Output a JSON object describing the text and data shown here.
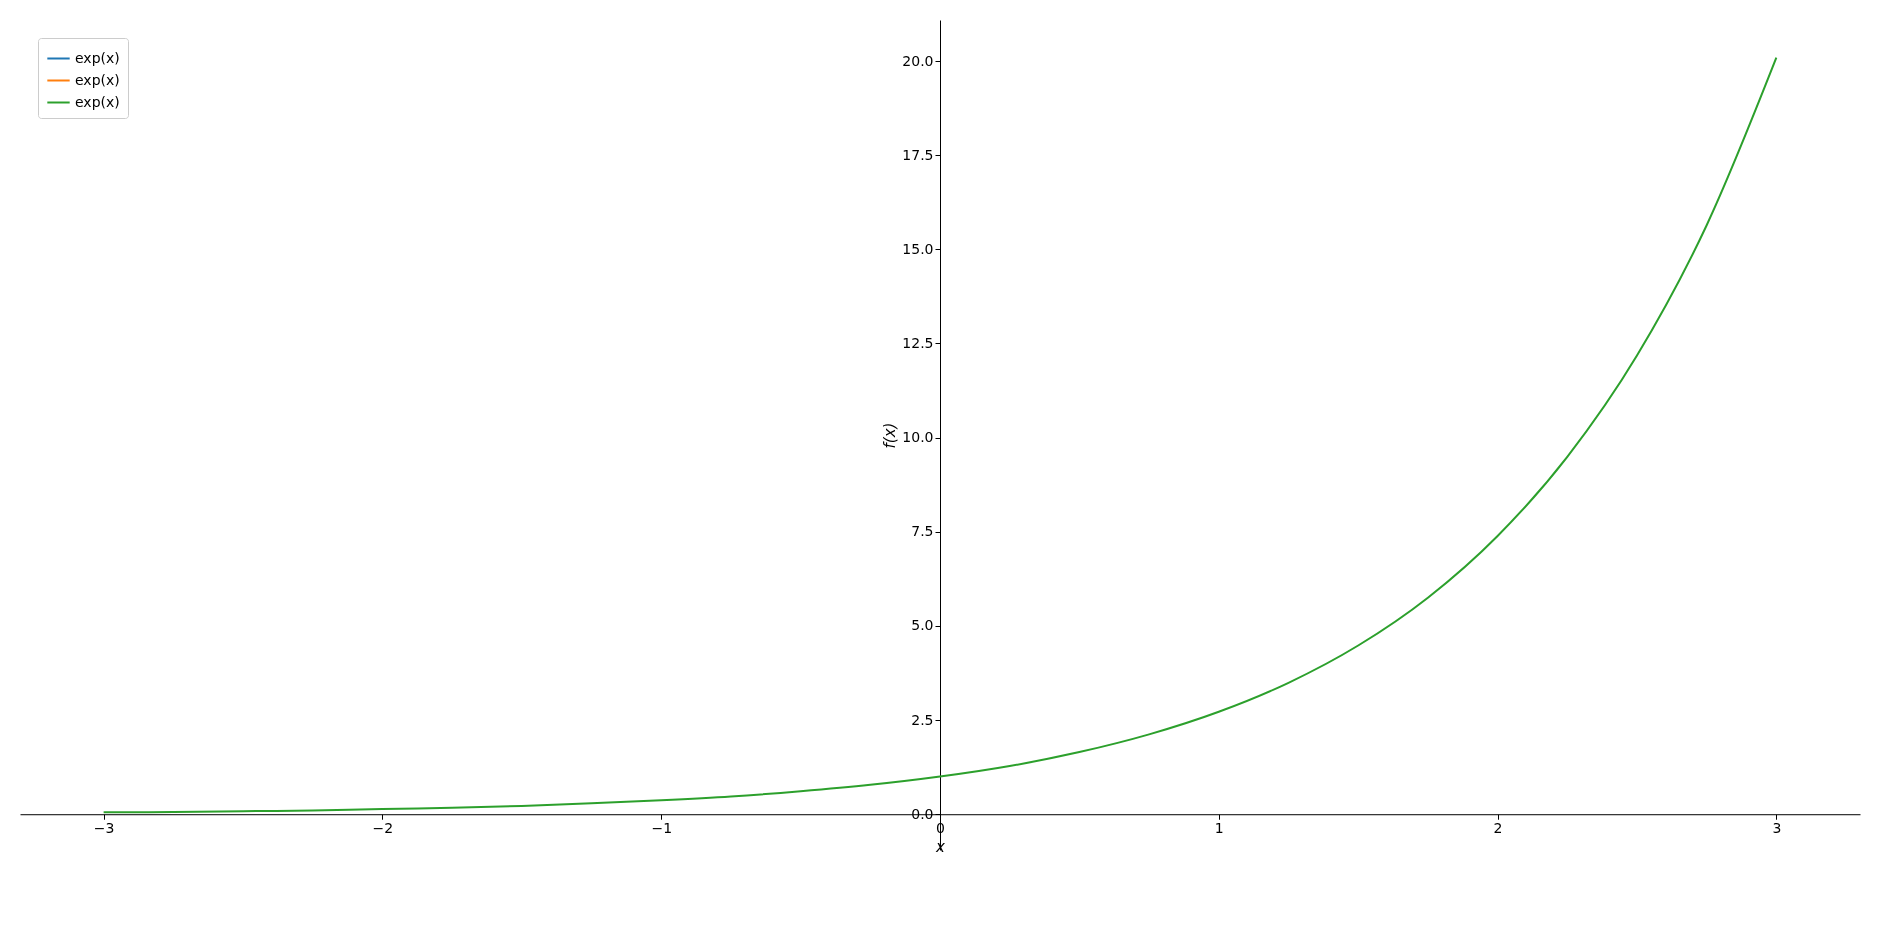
{
  "chart_data": {
    "type": "line",
    "x": [
      -3,
      -2.75,
      -2.5,
      -2.25,
      -2,
      -1.75,
      -1.5,
      -1.25,
      -1,
      -0.75,
      -0.5,
      -0.25,
      0,
      0.25,
      0.5,
      0.75,
      1,
      1.25,
      1.5,
      1.75,
      2,
      2.25,
      2.5,
      2.75,
      3
    ],
    "series": [
      {
        "name": "exp(x)",
        "color": "#1f77b4",
        "values": [
          null,
          null,
          null,
          null,
          null,
          null,
          null,
          null,
          null,
          null,
          null,
          null,
          null,
          null,
          null,
          null,
          null,
          null,
          null,
          null,
          null,
          null,
          null,
          null,
          null
        ]
      },
      {
        "name": "exp(x)",
        "color": "#ff7f0e",
        "values": [
          null,
          null,
          null,
          null,
          null,
          null,
          null,
          null,
          null,
          null,
          null,
          null,
          null,
          null,
          null,
          null,
          null,
          null,
          null,
          null,
          null,
          null,
          null,
          null,
          null
        ]
      },
      {
        "name": "exp(x)",
        "color": "#2ca02c",
        "values": [
          0.05,
          0.06,
          0.08,
          0.1,
          0.14,
          0.17,
          0.22,
          0.29,
          0.37,
          0.47,
          0.61,
          0.78,
          1.0,
          1.28,
          1.65,
          2.12,
          2.72,
          3.49,
          4.48,
          5.75,
          7.39,
          9.49,
          12.18,
          15.64,
          20.09
        ]
      }
    ],
    "xlabel": "x",
    "ylabel": "f(x)",
    "xlim": [
      -3.3,
      3.3
    ],
    "ylim": [
      -0.95,
      21.09
    ],
    "xticks": [
      {
        "value": -3,
        "label": "−3"
      },
      {
        "value": -2,
        "label": "−2"
      },
      {
        "value": -1,
        "label": "−1"
      },
      0,
      1,
      2,
      3
    ],
    "yticks": [
      {
        "value": 0,
        "label": "0.0"
      },
      {
        "value": 2.5,
        "label": "2.5"
      },
      {
        "value": 5,
        "label": "5.0"
      },
      {
        "value": 7.5,
        "label": "7.5"
      },
      {
        "value": 10,
        "label": "10.0"
      },
      {
        "value": 12.5,
        "label": "12.5"
      },
      {
        "value": 15,
        "label": "15.0"
      },
      {
        "value": 17.5,
        "label": "17.5"
      },
      {
        "value": 20,
        "label": "20.0"
      }
    ],
    "grid": false,
    "legend": "top left",
    "marker": "none",
    "line_style": "solid"
  }
}
